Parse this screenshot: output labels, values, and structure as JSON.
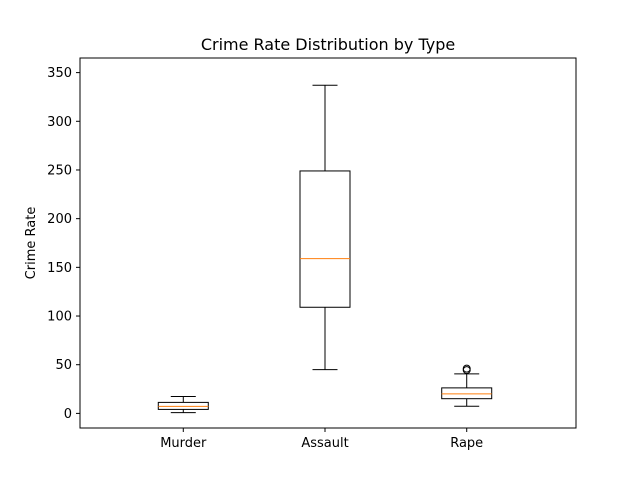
{
  "chart_data": {
    "type": "box",
    "title": "Crime Rate Distribution by Type",
    "xlabel": "",
    "ylabel": "Crime Rate",
    "ylim": [
      -15,
      365
    ],
    "yticks": [
      0,
      50,
      100,
      150,
      200,
      250,
      300,
      350
    ],
    "grid": false,
    "categories": [
      "Murder",
      "Assault",
      "Rape"
    ],
    "boxes": [
      {
        "name": "Murder",
        "whisker_low": 0.8,
        "q1": 4.1,
        "median": 7.2,
        "q3": 11.3,
        "whisker_high": 17.4,
        "outliers": []
      },
      {
        "name": "Assault",
        "whisker_low": 45,
        "q1": 109,
        "median": 159,
        "q3": 249,
        "whisker_high": 337,
        "outliers": []
      },
      {
        "name": "Rape",
        "whisker_low": 7.3,
        "q1": 15.1,
        "median": 20.1,
        "q3": 26.2,
        "whisker_high": 40.6,
        "outliers": [
          44.5,
          46.0
        ]
      }
    ],
    "colors": {
      "box": "#000000",
      "median": "#ff7f0e",
      "axis": "#000000"
    }
  }
}
